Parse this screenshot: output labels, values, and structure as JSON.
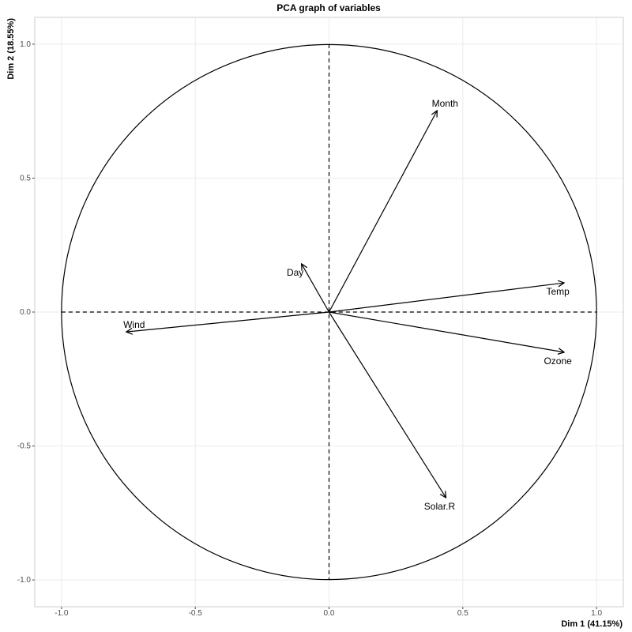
{
  "chart_data": {
    "type": "vector",
    "title": "PCA graph of variables",
    "x_label": "Dim 1 (41.15%)",
    "y_label": "Dim 2 (18.55%)",
    "points": [
      {
        "label": "Month",
        "x": 0.404,
        "y": 0.752
      },
      {
        "label": "Day",
        "x": -0.103,
        "y": 0.18
      },
      {
        "label": "Temp",
        "x": 0.879,
        "y": 0.109
      },
      {
        "label": "Ozone",
        "x": 0.879,
        "y": -0.15
      },
      {
        "label": "Solar.R",
        "x": 0.437,
        "y": -0.693
      },
      {
        "label": "Wind",
        "x": -0.758,
        "y": -0.074
      }
    ],
    "color": "#000000",
    "xlim": [
      -1.1,
      1.1
    ],
    "ylim": [
      -1.1,
      1.1
    ],
    "xticks": [
      {
        "value": -1,
        "label": "-1.0"
      },
      {
        "value": -0.5,
        "label": "-0.5"
      },
      {
        "value": 0,
        "label": "0.0"
      },
      {
        "value": 0.5,
        "label": "0.5"
      },
      {
        "value": 1,
        "label": "1.0"
      }
    ],
    "yticks": [
      {
        "value": -1,
        "label": "-1.0"
      },
      {
        "value": -0.5,
        "label": "-0.5"
      },
      {
        "value": 0,
        "label": "0.0"
      },
      {
        "value": 0.5,
        "label": "0.5"
      },
      {
        "value": 1,
        "label": "1.0"
      }
    ],
    "grid": true
  }
}
